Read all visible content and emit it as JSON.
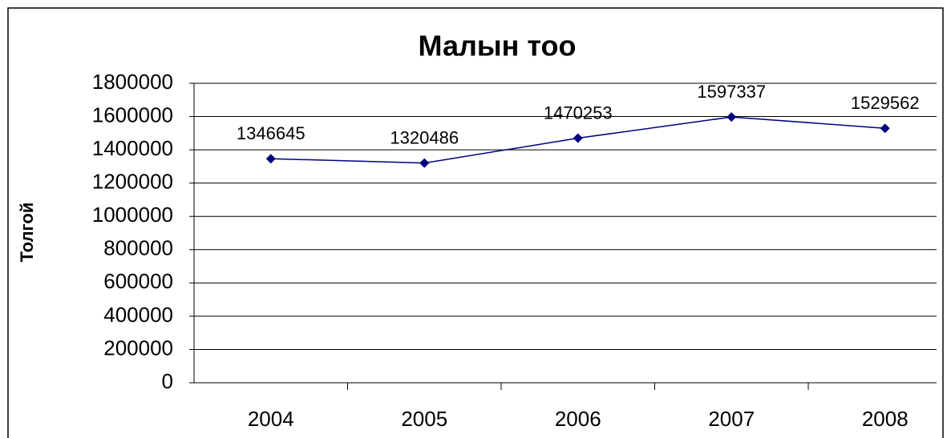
{
  "chart_data": {
    "type": "line",
    "title": "Малын тоо",
    "ylabel": "Толгой",
    "categories": [
      "2004",
      "2005",
      "2006",
      "2007",
      "2008"
    ],
    "series": [
      {
        "name": "Малын тоо",
        "color": "#000080",
        "values": [
          1346645,
          1320486,
          1470253,
          1597337,
          1529562
        ]
      }
    ],
    "ylim": [
      0,
      1800000
    ],
    "yticks": [
      0,
      200000,
      400000,
      600000,
      800000,
      1000000,
      1200000,
      1400000,
      1600000,
      1800000
    ],
    "grid": true,
    "data_labels": true
  }
}
